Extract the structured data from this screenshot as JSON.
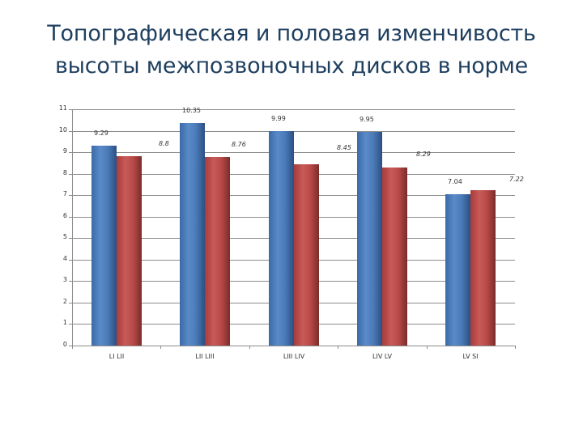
{
  "title": {
    "line1": "Топографическая и половая изменчивость",
    "line2": "высоты межпозвоночных дисков в норме"
  },
  "chart_data": {
    "type": "bar",
    "title": "Топографическая и половая изменчивость высоты межпозвоночных дисков в норме",
    "xlabel": "",
    "ylabel": "",
    "categories": [
      "LI LII",
      "LII LIII",
      "LIII LIV",
      "LIV LV",
      "LV SI"
    ],
    "series": [
      {
        "name": "Series 1 (blue)",
        "color": "#4a7ab8",
        "values": [
          9.29,
          10.35,
          9.99,
          9.95,
          7.04
        ]
      },
      {
        "name": "Series 2 (red)",
        "color": "#b84a48",
        "values": [
          8.8,
          8.76,
          8.45,
          8.29,
          7.22
        ]
      }
    ],
    "data_labels": {
      "series1": [
        "9.29",
        "10.35",
        "9.99",
        "9.95",
        "7.04"
      ],
      "series2": [
        "8.8",
        "8.76",
        "8.45",
        "8.29",
        "7.22"
      ]
    },
    "ylim": [
      0,
      11
    ],
    "yticks": [
      "0",
      "1",
      "2",
      "3",
      "4",
      "5",
      "6",
      "7",
      "8",
      "9",
      "10",
      "11"
    ],
    "grid": true,
    "legend": "none"
  }
}
